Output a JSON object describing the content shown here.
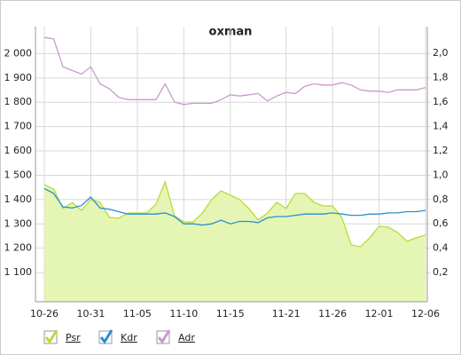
{
  "chart_data": {
    "type": "line",
    "title": "oxman",
    "categories": [
      "10-26",
      null,
      null,
      null,
      null,
      "10-31",
      null,
      null,
      null,
      null,
      "11-05",
      null,
      null,
      null,
      null,
      "11-10",
      null,
      null,
      null,
      null,
      "11-15",
      null,
      null,
      null,
      null,
      null,
      "11-21",
      null,
      null,
      null,
      null,
      "11-26",
      null,
      null,
      null,
      null,
      "12-01",
      null,
      null,
      null,
      null,
      "12-06"
    ],
    "ylim": [
      980,
      2111
    ],
    "yticks": [
      {
        "value": 1100,
        "label": "1 100"
      },
      {
        "value": 1200,
        "label": "1 200"
      },
      {
        "value": 1300,
        "label": "1 300"
      },
      {
        "value": 1400,
        "label": "1 400"
      },
      {
        "value": 1500,
        "label": "1 500"
      },
      {
        "value": 1600,
        "label": "1 600"
      },
      {
        "value": 1700,
        "label": "1 700"
      },
      {
        "value": 1800,
        "label": "1 800"
      },
      {
        "value": 1900,
        "label": "1 900"
      },
      {
        "value": 2000,
        "label": "2 000"
      }
    ],
    "y2lim": [
      -0.04,
      2.22
    ],
    "y2ticks": [
      {
        "value": 0.2,
        "label": "0,2"
      },
      {
        "value": 0.4,
        "label": "0,4"
      },
      {
        "value": 0.6,
        "label": "0,6"
      },
      {
        "value": 0.8,
        "label": "0,8"
      },
      {
        "value": 1.0,
        "label": "1,0"
      },
      {
        "value": 1.2,
        "label": "1,2"
      },
      {
        "value": 1.4,
        "label": "1,4"
      },
      {
        "value": 1.6,
        "label": "1,6"
      },
      {
        "value": 1.8,
        "label": "1,8"
      },
      {
        "value": 2.0,
        "label": "2,0"
      }
    ],
    "grid": true,
    "series": [
      {
        "name": "Psr",
        "color": "#b5dd3a",
        "fill": "#e4f5b4",
        "area": true,
        "values": [
          1462,
          1443,
          1363,
          1388,
          1356,
          1400,
          1389,
          1327,
          1323,
          1345,
          1345,
          1345,
          1381,
          1473,
          1334,
          1308,
          1308,
          1345,
          1400,
          1436,
          1418,
          1400,
          1363,
          1316,
          1345,
          1389,
          1363,
          1425,
          1425,
          1389,
          1374,
          1374,
          1327,
          1214,
          1206,
          1243,
          1290,
          1287,
          1265,
          1228,
          1243,
          1254
        ]
      },
      {
        "name": "Kdr",
        "color": "#2a8fcf",
        "axis": "y2",
        "values": [
          0.89,
          0.85,
          0.74,
          0.73,
          0.75,
          0.82,
          0.73,
          0.72,
          0.7,
          0.68,
          0.68,
          0.68,
          0.68,
          0.69,
          0.66,
          0.6,
          0.6,
          0.59,
          0.6,
          0.63,
          0.6,
          0.62,
          0.62,
          0.61,
          0.65,
          0.66,
          0.66,
          0.67,
          0.68,
          0.68,
          0.68,
          0.69,
          0.68,
          0.67,
          0.67,
          0.68,
          0.68,
          0.69,
          0.69,
          0.7,
          0.7,
          0.71
        ]
      },
      {
        "name": "Adr",
        "color": "#cc99cc",
        "axis": "y2",
        "values": [
          2.13,
          2.12,
          1.89,
          1.86,
          1.83,
          1.89,
          1.75,
          1.71,
          1.64,
          1.62,
          1.62,
          1.62,
          1.62,
          1.75,
          1.6,
          1.58,
          1.59,
          1.59,
          1.59,
          1.62,
          1.66,
          1.65,
          1.66,
          1.67,
          1.61,
          1.65,
          1.68,
          1.67,
          1.73,
          1.75,
          1.74,
          1.74,
          1.76,
          1.74,
          1.7,
          1.69,
          1.69,
          1.68,
          1.7,
          1.7,
          1.7,
          1.72
        ]
      }
    ]
  }
}
